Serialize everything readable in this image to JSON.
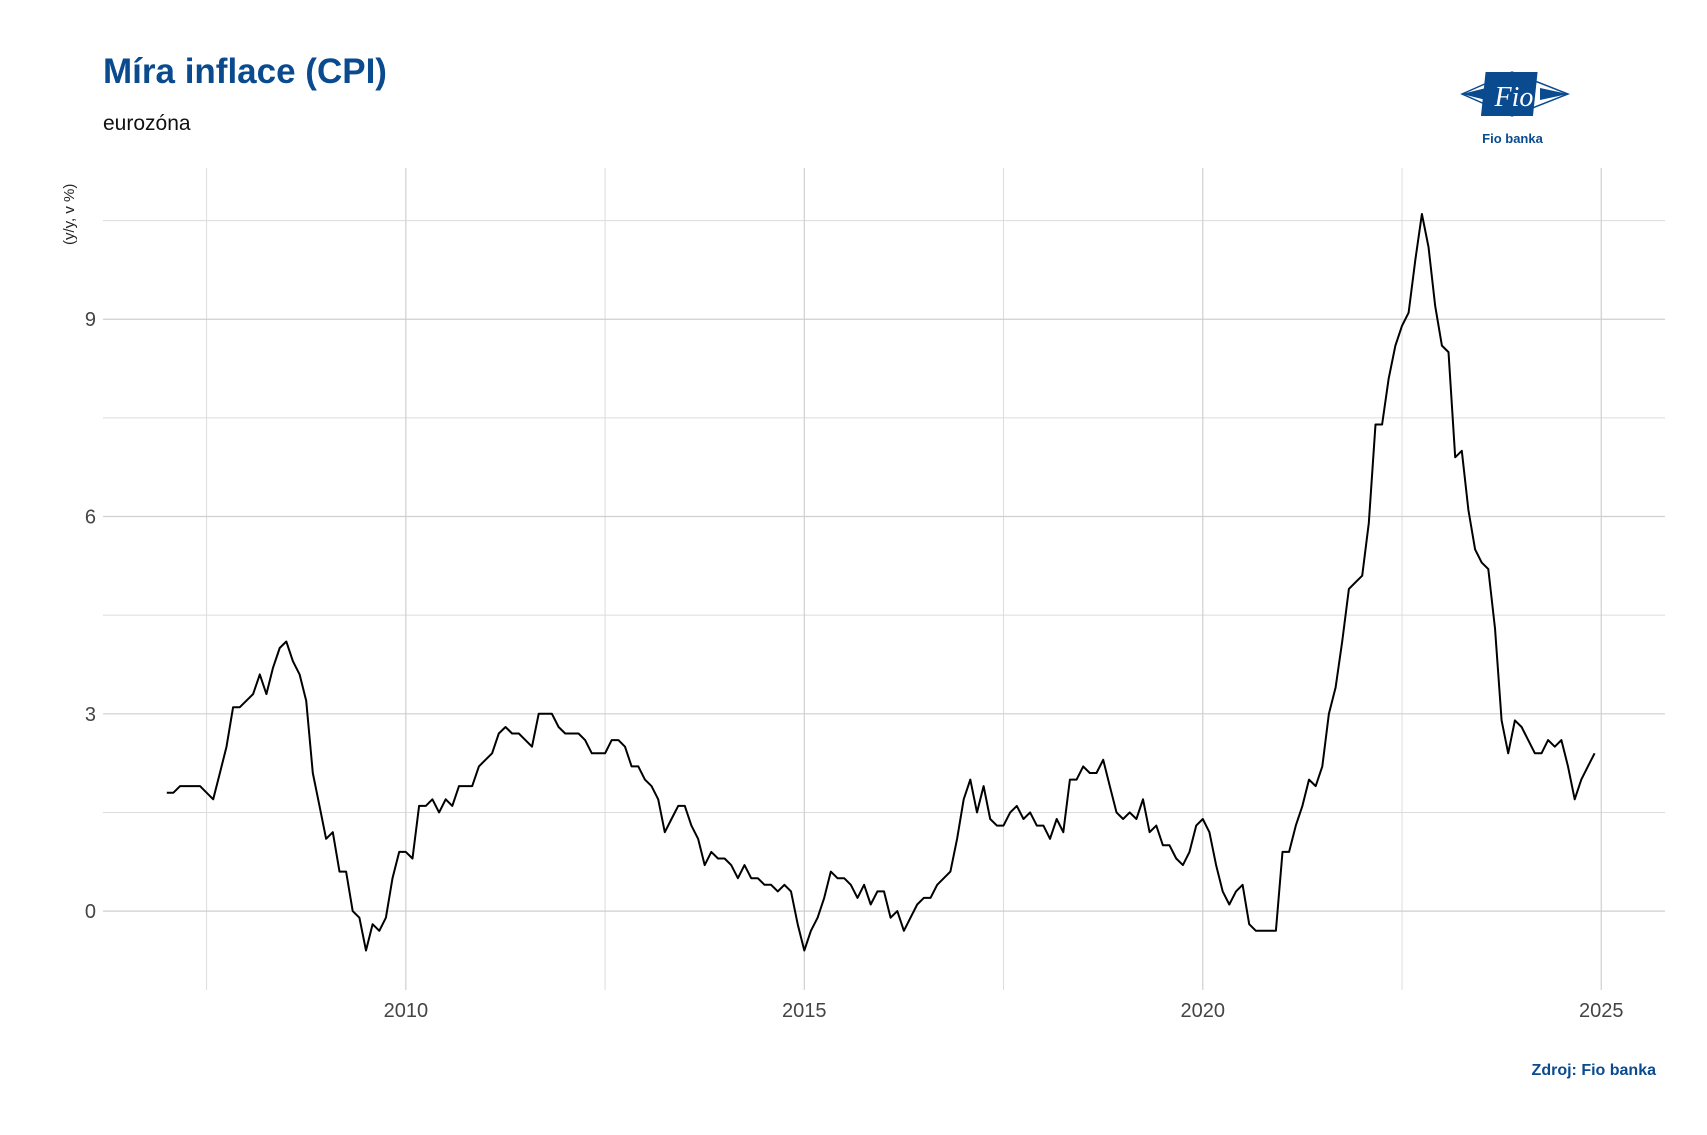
{
  "header": {
    "title": "Míra inflace (CPI)",
    "subtitle": "eurozóna"
  },
  "logo": {
    "caption": "Fio banka",
    "brand_color": "#0a4a8f"
  },
  "footer": {
    "source": "Zdroj: Fio banka"
  },
  "chart_data": {
    "type": "line",
    "ylabel": "(y/y, v %)",
    "xlabel": "",
    "xlim": [
      2006.2,
      2025.8
    ],
    "ylim": [
      -1.2,
      11.3
    ],
    "x_ticks": [
      2010,
      2015,
      2020,
      2025
    ],
    "x_minor_ticks": [
      2007.5,
      2012.5,
      2017.5,
      2022.5
    ],
    "y_ticks": [
      0,
      3,
      6,
      9
    ],
    "y_minor_ticks": [
      1.5,
      4.5,
      7.5,
      10.5
    ],
    "grid": true,
    "line_color": "#000000",
    "series": [
      {
        "x": [
          2007.0,
          2007.083,
          2007.167,
          2007.25,
          2007.333,
          2007.417,
          2007.5,
          2007.583,
          2007.667,
          2007.75,
          2007.833,
          2007.917,
          2008.0,
          2008.083,
          2008.167,
          2008.25,
          2008.333,
          2008.417,
          2008.5,
          2008.583,
          2008.667,
          2008.75,
          2008.833,
          2008.917,
          2009.0,
          2009.083,
          2009.167,
          2009.25,
          2009.333,
          2009.417,
          2009.5,
          2009.583,
          2009.667,
          2009.75,
          2009.833,
          2009.917,
          2010.0,
          2010.083,
          2010.167,
          2010.25,
          2010.333,
          2010.417,
          2010.5,
          2010.583,
          2010.667,
          2010.75,
          2010.833,
          2010.917,
          2011.0,
          2011.083,
          2011.167,
          2011.25,
          2011.333,
          2011.417,
          2011.5,
          2011.583,
          2011.667,
          2011.75,
          2011.833,
          2011.917,
          2012.0,
          2012.083,
          2012.167,
          2012.25,
          2012.333,
          2012.417,
          2012.5,
          2012.583,
          2012.667,
          2012.75,
          2012.833,
          2012.917,
          2013.0,
          2013.083,
          2013.167,
          2013.25,
          2013.333,
          2013.417,
          2013.5,
          2013.583,
          2013.667,
          2013.75,
          2013.833,
          2013.917,
          2014.0,
          2014.083,
          2014.167,
          2014.25,
          2014.333,
          2014.417,
          2014.5,
          2014.583,
          2014.667,
          2014.75,
          2014.833,
          2014.917,
          2015.0,
          2015.083,
          2015.167,
          2015.25,
          2015.333,
          2015.417,
          2015.5,
          2015.583,
          2015.667,
          2015.75,
          2015.833,
          2015.917,
          2016.0,
          2016.083,
          2016.167,
          2016.25,
          2016.333,
          2016.417,
          2016.5,
          2016.583,
          2016.667,
          2016.75,
          2016.833,
          2016.917,
          2017.0,
          2017.083,
          2017.167,
          2017.25,
          2017.333,
          2017.417,
          2017.5,
          2017.583,
          2017.667,
          2017.75,
          2017.833,
          2017.917,
          2018.0,
          2018.083,
          2018.167,
          2018.25,
          2018.333,
          2018.417,
          2018.5,
          2018.583,
          2018.667,
          2018.75,
          2018.833,
          2018.917,
          2019.0,
          2019.083,
          2019.167,
          2019.25,
          2019.333,
          2019.417,
          2019.5,
          2019.583,
          2019.667,
          2019.75,
          2019.833,
          2019.917,
          2020.0,
          2020.083,
          2020.167,
          2020.25,
          2020.333,
          2020.417,
          2020.5,
          2020.583,
          2020.667,
          2020.75,
          2020.833,
          2020.917,
          2021.0,
          2021.083,
          2021.167,
          2021.25,
          2021.333,
          2021.417,
          2021.5,
          2021.583,
          2021.667,
          2021.75,
          2021.833,
          2021.917,
          2022.0,
          2022.083,
          2022.167,
          2022.25,
          2022.333,
          2022.417,
          2022.5,
          2022.583,
          2022.667,
          2022.75,
          2022.833,
          2022.917,
          2023.0,
          2023.083,
          2023.167,
          2023.25,
          2023.333,
          2023.417,
          2023.5,
          2023.583,
          2023.667,
          2023.75,
          2023.833,
          2023.917,
          2024.0,
          2024.083,
          2024.167,
          2024.25,
          2024.333,
          2024.417,
          2024.5,
          2024.583,
          2024.667,
          2024.75,
          2024.833,
          2024.917
        ],
        "y": [
          1.8,
          1.8,
          1.9,
          1.9,
          1.9,
          1.9,
          1.8,
          1.7,
          2.1,
          2.5,
          3.1,
          3.1,
          3.2,
          3.3,
          3.6,
          3.3,
          3.7,
          4.0,
          4.1,
          3.8,
          3.6,
          3.2,
          2.1,
          1.6,
          1.1,
          1.2,
          0.6,
          0.6,
          0.0,
          -0.1,
          -0.6,
          -0.2,
          -0.3,
          -0.1,
          0.5,
          0.9,
          0.9,
          0.8,
          1.6,
          1.6,
          1.7,
          1.5,
          1.7,
          1.6,
          1.9,
          1.9,
          1.9,
          2.2,
          2.3,
          2.4,
          2.7,
          2.8,
          2.7,
          2.7,
          2.6,
          2.5,
          3.0,
          3.0,
          3.0,
          2.8,
          2.7,
          2.7,
          2.7,
          2.6,
          2.4,
          2.4,
          2.4,
          2.6,
          2.6,
          2.5,
          2.2,
          2.2,
          2.0,
          1.9,
          1.7,
          1.2,
          1.4,
          1.6,
          1.6,
          1.3,
          1.1,
          0.7,
          0.9,
          0.8,
          0.8,
          0.7,
          0.5,
          0.7,
          0.5,
          0.5,
          0.4,
          0.4,
          0.3,
          0.4,
          0.3,
          -0.2,
          -0.6,
          -0.3,
          -0.1,
          0.2,
          0.6,
          0.5,
          0.5,
          0.4,
          0.2,
          0.4,
          0.1,
          0.3,
          0.3,
          -0.1,
          0.0,
          -0.3,
          -0.1,
          0.1,
          0.2,
          0.2,
          0.4,
          0.5,
          0.6,
          1.1,
          1.7,
          2.0,
          1.5,
          1.9,
          1.4,
          1.3,
          1.3,
          1.5,
          1.6,
          1.4,
          1.5,
          1.3,
          1.3,
          1.1,
          1.4,
          1.2,
          2.0,
          2.0,
          2.2,
          2.1,
          2.1,
          2.3,
          1.9,
          1.5,
          1.4,
          1.5,
          1.4,
          1.7,
          1.2,
          1.3,
          1.0,
          1.0,
          0.8,
          0.7,
          0.9,
          1.3,
          1.4,
          1.2,
          0.7,
          0.3,
          0.1,
          0.3,
          0.4,
          -0.2,
          -0.3,
          -0.3,
          -0.3,
          -0.3,
          0.9,
          0.9,
          1.3,
          1.6,
          2.0,
          1.9,
          2.2,
          3.0,
          3.4,
          4.1,
          4.9,
          5.0,
          5.1,
          5.9,
          7.4,
          7.4,
          8.1,
          8.6,
          8.9,
          9.1,
          9.9,
          10.6,
          10.1,
          9.2,
          8.6,
          8.5,
          6.9,
          7.0,
          6.1,
          5.5,
          5.3,
          5.2,
          4.3,
          2.9,
          2.4,
          2.9,
          2.8,
          2.6,
          2.4,
          2.4,
          2.6,
          2.5,
          2.6,
          2.2,
          1.7,
          2.0,
          2.2,
          2.4
        ]
      }
    ]
  }
}
